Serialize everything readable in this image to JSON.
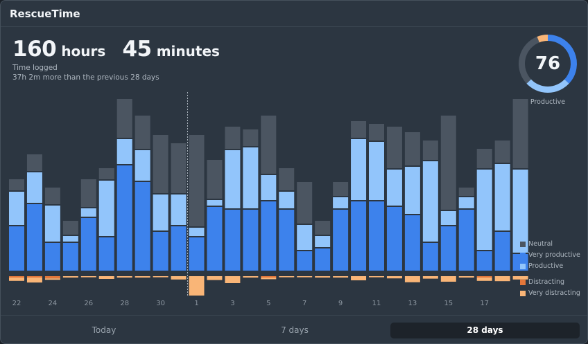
{
  "app": {
    "title": "RescueTime"
  },
  "summary": {
    "hours_value": "160",
    "hours_unit": "hours",
    "minutes_value": "45",
    "minutes_unit": "minutes",
    "caption": "Time logged",
    "comparison": "37h 2m more than the previous 28 days"
  },
  "pulse": {
    "score": "76",
    "label": "Productive",
    "icon": "productivity-pulse-donut"
  },
  "colors": {
    "neutral": "#4b5561",
    "very_productive": "#3d82ec",
    "productive": "#92c5fb",
    "distracting": "#e4773a",
    "very_distracting": "#f9b577",
    "background": "#2c3641"
  },
  "legend": {
    "neutral": "Neutral",
    "very_productive": "Very productive",
    "productive": "Productive",
    "distracting": "Distracting",
    "very_distracting": "Very distracting"
  },
  "tabs": [
    {
      "label": "Today",
      "active": false
    },
    {
      "label": "7 days",
      "active": false
    },
    {
      "label": "28 days",
      "active": true
    }
  ],
  "chart_data": {
    "type": "bar",
    "stacked": true,
    "y_unit": "hours",
    "x_tick_labels": [
      "22",
      "24",
      "26",
      "28",
      "30",
      "1",
      "3",
      "5",
      "7",
      "9",
      "11",
      "13",
      "15",
      "17"
    ],
    "month_divider_before_index": 10,
    "categories": [
      "22",
      "23",
      "24",
      "25",
      "26",
      "27",
      "28",
      "29",
      "30",
      "31",
      "1",
      "2",
      "3",
      "4",
      "5",
      "6",
      "7",
      "8",
      "9",
      "10",
      "11",
      "12",
      "13",
      "14",
      "15",
      "16",
      "17",
      "18",
      "19"
    ],
    "series": [
      {
        "name": "Very productive",
        "key": "very_productive",
        "values": [
          1.6,
          2.4,
          1.0,
          1.0,
          1.9,
          1.2,
          3.8,
          3.2,
          1.4,
          1.6,
          1.2,
          2.3,
          2.2,
          2.2,
          2.5,
          2.2,
          0.7,
          0.8,
          2.2,
          2.5,
          2.5,
          2.3,
          2.0,
          1.0,
          1.6,
          2.2,
          0.7,
          1.4,
          0.6
        ]
      },
      {
        "name": "Productive",
        "key": "productive",
        "values": [
          1.2,
          1.1,
          1.3,
          0.2,
          0.3,
          2.0,
          0.9,
          1.1,
          1.3,
          1.1,
          0.3,
          0.2,
          2.1,
          2.2,
          0.9,
          0.6,
          0.9,
          0.4,
          0.4,
          2.2,
          2.1,
          1.3,
          1.7,
          2.9,
          0.5,
          0.4,
          2.9,
          2.4,
          3.0
        ]
      },
      {
        "name": "Neutral",
        "key": "neutral",
        "values": [
          0.4,
          0.6,
          0.6,
          0.5,
          1.0,
          0.4,
          1.4,
          1.2,
          2.1,
          1.8,
          3.3,
          1.4,
          0.8,
          0.6,
          2.1,
          0.8,
          1.5,
          0.5,
          0.5,
          0.6,
          0.6,
          1.5,
          1.2,
          0.7,
          3.4,
          0.3,
          0.7,
          0.8,
          2.5
        ]
      },
      {
        "name": "Distracting",
        "key": "distracting",
        "values": [
          0.05,
          0.05,
          0.08,
          0.0,
          0.0,
          0.0,
          0.0,
          0.0,
          0.0,
          0.0,
          0.0,
          0.0,
          0.0,
          0.0,
          0.05,
          0.0,
          0.0,
          0.0,
          0.0,
          0.0,
          0.0,
          0.0,
          0.0,
          0.0,
          0.0,
          0.0,
          0.05,
          0.0,
          0.0
        ]
      },
      {
        "name": "Very distracting",
        "key": "very_distracting",
        "values": [
          0.12,
          0.18,
          0.05,
          0.05,
          0.04,
          0.1,
          0.05,
          0.05,
          0.04,
          0.12,
          0.7,
          0.14,
          0.25,
          0.05,
          0.06,
          0.04,
          0.04,
          0.05,
          0.05,
          0.15,
          0.04,
          0.08,
          0.22,
          0.09,
          0.2,
          0.05,
          0.12,
          0.18,
          0.12
        ]
      }
    ]
  }
}
